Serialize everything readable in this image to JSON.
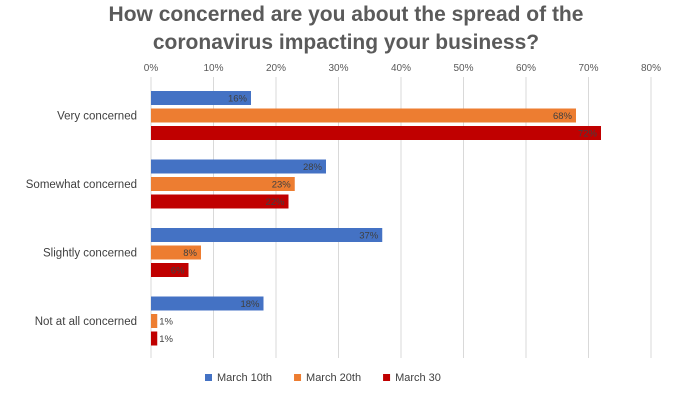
{
  "chart_data": {
    "type": "bar",
    "orientation": "horizontal",
    "title_lines": [
      "How concerned are you about the spread of the",
      "coronavirus impacting your business?"
    ],
    "categories": [
      "Very concerned",
      "Somewhat concerned",
      "Slightly concerned",
      "Not at all concerned"
    ],
    "series": [
      {
        "name": "March 10th",
        "color": "#4472c4",
        "values": [
          16,
          28,
          37,
          18
        ]
      },
      {
        "name": "March 20th",
        "color": "#ed7d31",
        "values": [
          68,
          23,
          8,
          1
        ]
      },
      {
        "name": "March 30",
        "color": "#c00000",
        "values": [
          72,
          22,
          6,
          1
        ]
      }
    ],
    "xlim": [
      0,
      80
    ],
    "xticks": [
      0,
      10,
      20,
      30,
      40,
      50,
      60,
      70,
      80
    ],
    "tick_suffix": "%",
    "value_suffix": "%",
    "grid": true,
    "xaxis_position": "top",
    "legend_position": "bottom"
  }
}
